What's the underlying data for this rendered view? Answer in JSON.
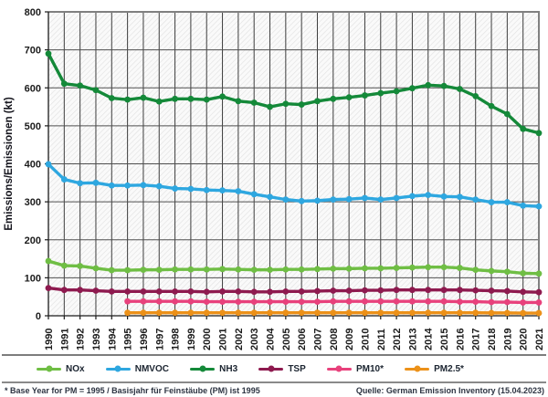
{
  "chart_data": {
    "type": "line",
    "title": "",
    "xlabel": "",
    "ylabel": "Emissions/Emissionen (kt)",
    "ylim": [
      0,
      800
    ],
    "yticks": [
      0,
      100,
      200,
      300,
      400,
      500,
      600,
      700,
      800
    ],
    "grid": true,
    "plot_background": "diagonal-hatch",
    "legend_position": "bottom",
    "x": [
      1990,
      1991,
      1992,
      1993,
      1994,
      1995,
      1996,
      1997,
      1998,
      1999,
      2000,
      2001,
      2002,
      2003,
      2004,
      2005,
      2006,
      2007,
      2008,
      2009,
      2010,
      2011,
      2012,
      2013,
      2014,
      2015,
      2016,
      2017,
      2018,
      2019,
      2020,
      2021
    ],
    "series": [
      {
        "name": "NOx",
        "color": "#6FBE44",
        "values": [
          144,
          132,
          131,
          125,
          120,
          120,
          121,
          121,
          122,
          122,
          122,
          123,
          122,
          121,
          121,
          122,
          122,
          123,
          124,
          124,
          125,
          125,
          126,
          127,
          128,
          128,
          126,
          121,
          118,
          116,
          112,
          111
        ]
      },
      {
        "name": "NMVOC",
        "color": "#2EA7E0",
        "values": [
          399,
          359,
          349,
          350,
          343,
          343,
          344,
          341,
          335,
          334,
          331,
          330,
          328,
          320,
          313,
          306,
          302,
          303,
          306,
          307,
          310,
          306,
          310,
          315,
          318,
          314,
          313,
          306,
          299,
          299,
          290,
          288
        ]
      },
      {
        "name": "NH3",
        "color": "#148939",
        "values": [
          690,
          611,
          606,
          594,
          573,
          569,
          574,
          564,
          571,
          571,
          569,
          577,
          565,
          561,
          550,
          558,
          556,
          565,
          571,
          575,
          580,
          586,
          591,
          599,
          607,
          605,
          597,
          578,
          552,
          531,
          492,
          481
        ]
      },
      {
        "name": "TSP",
        "color": "#8E1A4F",
        "values": [
          73,
          68,
          68,
          66,
          64,
          64,
          64,
          64,
          64,
          64,
          63,
          64,
          64,
          63,
          63,
          64,
          64,
          65,
          66,
          66,
          67,
          67,
          68,
          68,
          68,
          68,
          68,
          67,
          66,
          65,
          63,
          62
        ]
      },
      {
        "name": "PM10*",
        "color": "#E8417C",
        "values": [
          null,
          null,
          null,
          null,
          null,
          38,
          38,
          38,
          38,
          38,
          37,
          37,
          37,
          37,
          37,
          37,
          37,
          37,
          38,
          38,
          38,
          38,
          38,
          38,
          38,
          38,
          37,
          37,
          36,
          36,
          35,
          35
        ]
      },
      {
        "name": "PM2.5*",
        "color": "#EC9119",
        "values": [
          null,
          null,
          null,
          null,
          null,
          8,
          8,
          8,
          8,
          8,
          8,
          8,
          8,
          8,
          8,
          8,
          8,
          8,
          8,
          8,
          8,
          8,
          8,
          8,
          8,
          8,
          8,
          8,
          7.5,
          7.5,
          7,
          7
        ]
      }
    ]
  },
  "footer": {
    "note": "* Base Year for PM = 1995 / Basisjahr für Feinstäube (PM) ist 1995",
    "source": "Quelle: German Emission Inventory (15.04.2023)"
  },
  "style_colors": {
    "grid_vertical": "#3c3c3c",
    "grid_horizontal": "#4f4f4f",
    "axis": "#1a1a1a",
    "border": "#808080",
    "hatch_line": "#e2e2e2",
    "hatch_bg": "#fafafa"
  }
}
